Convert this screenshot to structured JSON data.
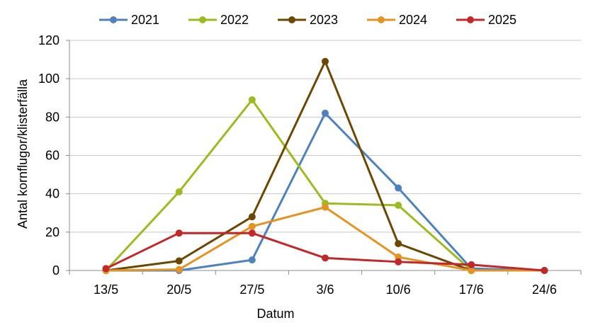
{
  "chart_data": {
    "type": "line",
    "title": "",
    "xlabel": "Datum",
    "ylabel": "Antal kornflugor/klisterfälla",
    "categories": [
      "13/5",
      "20/5",
      "27/5",
      "3/6",
      "10/6",
      "17/6",
      "24/6"
    ],
    "ylim": [
      0,
      120
    ],
    "yticks": [
      0,
      20,
      40,
      60,
      80,
      100,
      120
    ],
    "grid": "horizontal",
    "legend_position": "top",
    "series": [
      {
        "name": "2021",
        "color": "#4f81bd",
        "values": [
          0,
          0,
          5.5,
          82,
          43,
          1,
          0
        ]
      },
      {
        "name": "2022",
        "color": "#9bbb22",
        "values": [
          0,
          41,
          89,
          35,
          34,
          0,
          0
        ]
      },
      {
        "name": "2023",
        "color": "#6b4800",
        "values": [
          0,
          5,
          28,
          109,
          14,
          0,
          0
        ]
      },
      {
        "name": "2024",
        "color": "#e39425",
        "values": [
          0,
          0.5,
          23,
          33,
          7,
          0,
          0
        ]
      },
      {
        "name": "2025",
        "color": "#c0282a",
        "values": [
          1,
          19.5,
          19.5,
          6.5,
          4.5,
          3,
          0
        ]
      }
    ]
  }
}
